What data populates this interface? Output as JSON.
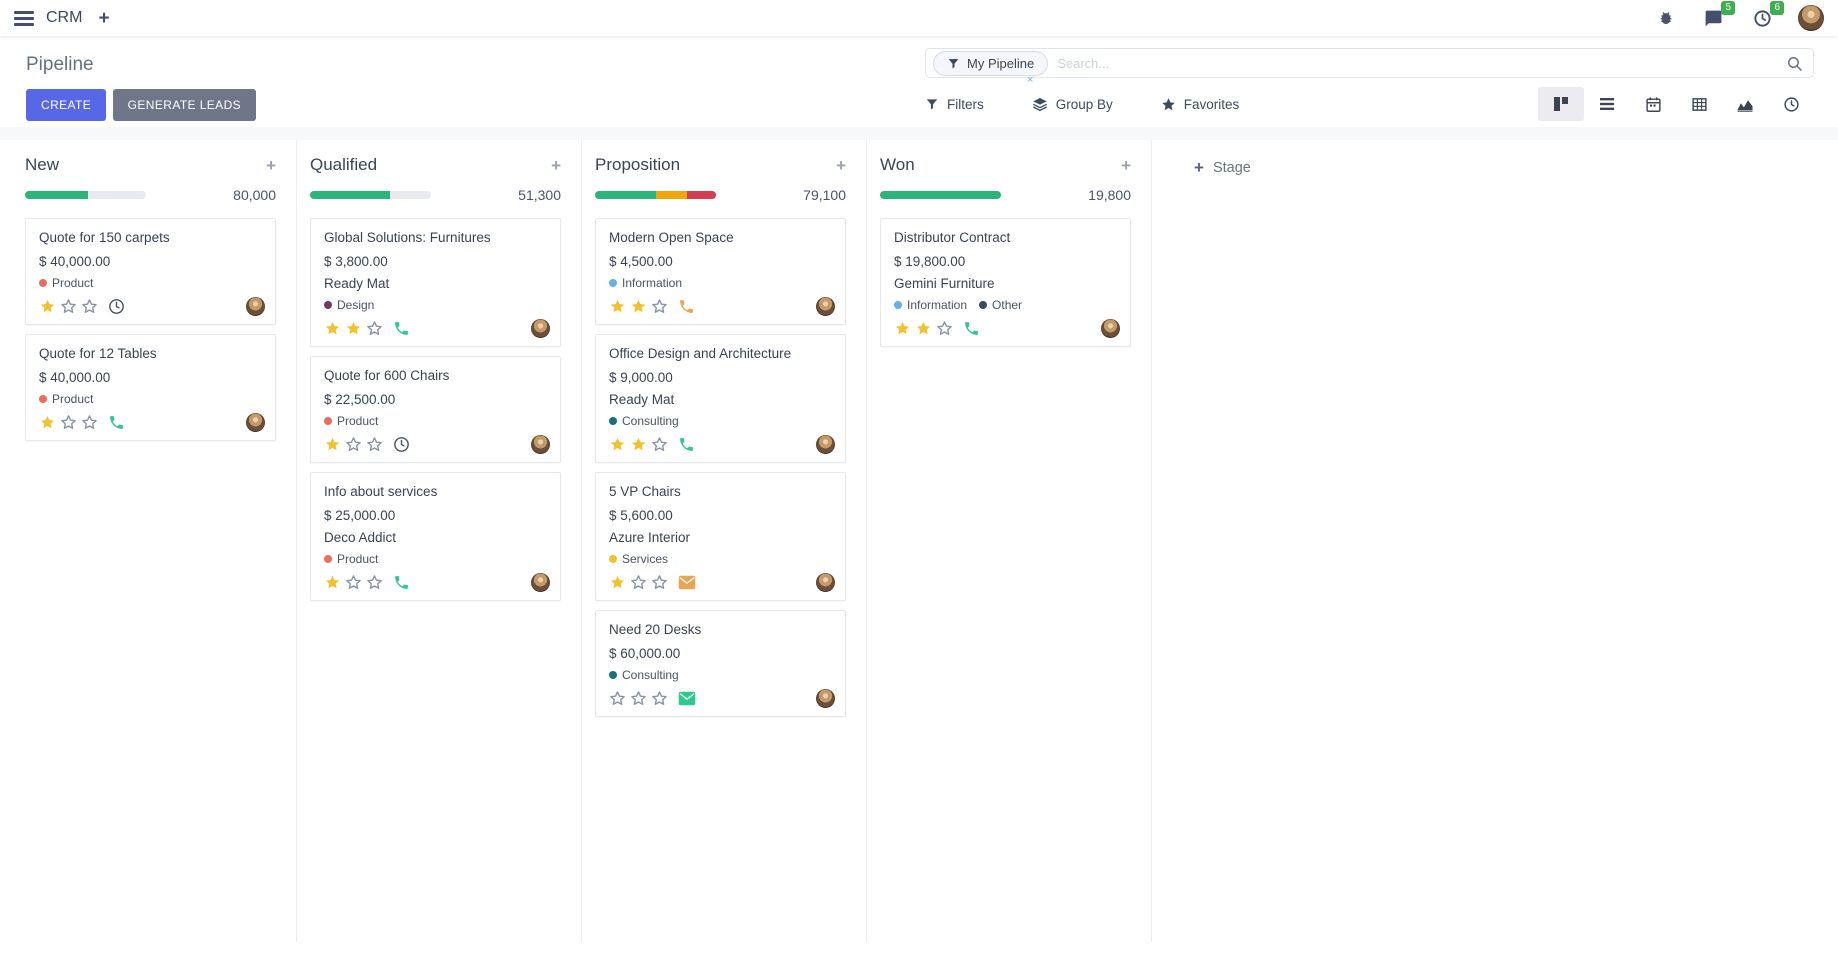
{
  "navbar": {
    "app_name": "CRM",
    "messages_badge": "5",
    "activities_badge": "6"
  },
  "control_panel": {
    "title": "Pipeline",
    "buttons": {
      "create": "CREATE",
      "generate_leads": "GENERATE LEADS"
    },
    "search": {
      "facet_label": "My Pipeline",
      "placeholder": "Search...",
      "facet_remove": "×"
    },
    "menus": {
      "filters": "Filters",
      "group_by": "Group By",
      "favorites": "Favorites"
    },
    "view_switcher": {
      "active": "kanban",
      "views": [
        "kanban",
        "list",
        "calendar",
        "pivot",
        "graph",
        "activity"
      ]
    }
  },
  "board": {
    "add_stage_label": "Stage",
    "columns": [
      {
        "name": "New",
        "total": "80,000",
        "progress": [
          {
            "color": "#2bb57a",
            "pct": 52
          }
        ],
        "cards": [
          {
            "title": "Quote for 150 carpets",
            "amount": "$ 40,000.00",
            "tags": [
              {
                "label": "Product",
                "color": "#ee6b61"
              }
            ],
            "stars": 1,
            "activity": {
              "icon": "clock",
              "color": "#4a5263"
            }
          },
          {
            "title": "Quote for 12 Tables",
            "amount": "$ 40,000.00",
            "tags": [
              {
                "label": "Product",
                "color": "#ee6b61"
              }
            ],
            "stars": 1,
            "activity": {
              "icon": "phone",
              "color": "#31c598"
            }
          }
        ]
      },
      {
        "name": "Qualified",
        "total": "51,300",
        "progress": [
          {
            "color": "#2bb57a",
            "pct": 66
          }
        ],
        "cards": [
          {
            "title": "Global Solutions: Furnitures",
            "amount": "$ 3,800.00",
            "company": "Ready Mat",
            "tags": [
              {
                "label": "Design",
                "color": "#6d3a60"
              }
            ],
            "stars": 2,
            "activity": {
              "icon": "phone",
              "color": "#31c598"
            }
          },
          {
            "title": "Quote for 600 Chairs",
            "amount": "$ 22,500.00",
            "tags": [
              {
                "label": "Product",
                "color": "#ee6b61"
              }
            ],
            "stars": 1,
            "activity": {
              "icon": "clock",
              "color": "#4a5263"
            }
          },
          {
            "title": "Info about services",
            "amount": "$ 25,000.00",
            "company": "Deco Addict",
            "tags": [
              {
                "label": "Product",
                "color": "#ee6b61"
              }
            ],
            "stars": 1,
            "activity": {
              "icon": "phone",
              "color": "#31c598"
            }
          }
        ]
      },
      {
        "name": "Proposition",
        "total": "79,100",
        "progress": [
          {
            "color": "#2bb57a",
            "pct": 50
          },
          {
            "color": "#efa70b",
            "pct": 26
          },
          {
            "color": "#d23f53",
            "pct": 24
          }
        ],
        "cards": [
          {
            "title": "Modern Open Space",
            "amount": "$ 4,500.00",
            "tags": [
              {
                "label": "Information",
                "color": "#64b0e8"
              }
            ],
            "stars": 2,
            "activity": {
              "icon": "phone",
              "color": "#eba552"
            }
          },
          {
            "title": "Office Design and Architecture",
            "amount": "$ 9,000.00",
            "company": "Ready Mat",
            "tags": [
              {
                "label": "Consulting",
                "color": "#16707c"
              }
            ],
            "stars": 2,
            "activity": {
              "icon": "phone",
              "color": "#31c598"
            }
          },
          {
            "title": "5 VP Chairs",
            "amount": "$ 5,600.00",
            "company": "Azure Interior",
            "tags": [
              {
                "label": "Services",
                "color": "#f0c22b"
              }
            ],
            "stars": 1,
            "activity": {
              "icon": "mail",
              "color": "#eba552"
            }
          },
          {
            "title": "Need 20 Desks",
            "amount": "$ 60,000.00",
            "tags": [
              {
                "label": "Consulting",
                "color": "#16707c"
              }
            ],
            "stars": 0,
            "activity": {
              "icon": "mail",
              "color": "#2ec98f"
            }
          }
        ]
      },
      {
        "name": "Won",
        "total": "19,800",
        "progress": [
          {
            "color": "#2bb57a",
            "pct": 100
          }
        ],
        "cards": [
          {
            "title": "Distributor Contract",
            "amount": "$ 19,800.00",
            "company": "Gemini Furniture",
            "tags": [
              {
                "label": "Information",
                "color": "#64b0e8"
              },
              {
                "label": "Other",
                "color": "#3a4a63"
              }
            ],
            "stars": 2,
            "activity": {
              "icon": "phone",
              "color": "#31c598"
            }
          }
        ]
      }
    ]
  }
}
